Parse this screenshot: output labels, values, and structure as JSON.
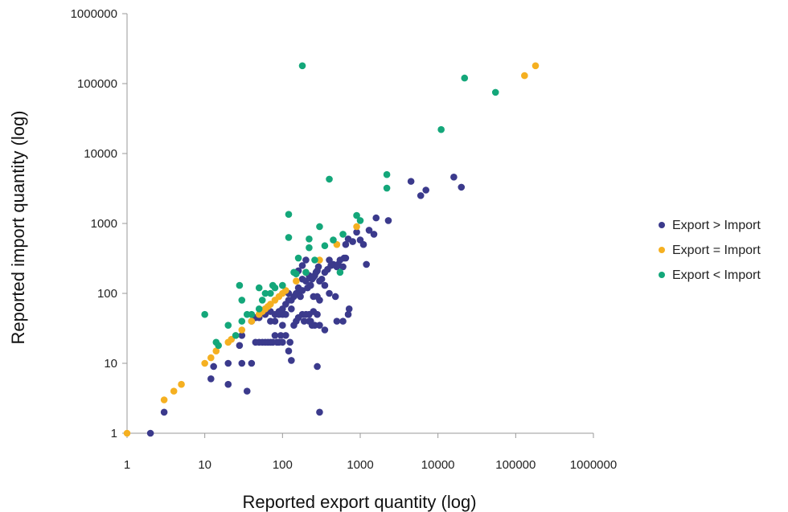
{
  "chart_data": {
    "type": "scatter",
    "title": "",
    "xlabel": "Reported export quantity (log)",
    "ylabel": "Reported import quantity (log)",
    "x_scale": "log",
    "y_scale": "log",
    "xlim": [
      1,
      1000000
    ],
    "ylim": [
      1,
      1000000
    ],
    "x_ticks": [
      "1",
      "10",
      "100",
      "1000",
      "10000",
      "100000",
      "1000000"
    ],
    "y_ticks": [
      "1",
      "10",
      "100",
      "1000",
      "10000",
      "100000",
      "1000000"
    ],
    "grid": false,
    "legend_position": "right",
    "series": [
      {
        "name": "Export > Import",
        "color": "#3b3a8c",
        "points": [
          [
            2,
            1
          ],
          [
            3,
            2
          ],
          [
            12,
            6
          ],
          [
            13,
            9
          ],
          [
            20,
            5
          ],
          [
            20,
            10
          ],
          [
            30,
            10
          ],
          [
            35,
            4
          ],
          [
            40,
            10
          ],
          [
            300,
            2
          ],
          [
            280,
            9
          ],
          [
            28,
            18
          ],
          [
            30,
            25
          ],
          [
            40,
            40
          ],
          [
            45,
            20
          ],
          [
            50,
            20
          ],
          [
            55,
            20
          ],
          [
            60,
            20
          ],
          [
            65,
            20
          ],
          [
            70,
            20
          ],
          [
            75,
            20
          ],
          [
            80,
            25
          ],
          [
            85,
            20
          ],
          [
            90,
            20
          ],
          [
            95,
            25
          ],
          [
            100,
            20
          ],
          [
            110,
            25
          ],
          [
            120,
            15
          ],
          [
            125,
            20
          ],
          [
            130,
            11
          ],
          [
            50,
            45
          ],
          [
            60,
            50
          ],
          [
            70,
            55
          ],
          [
            80,
            50
          ],
          [
            90,
            50
          ],
          [
            100,
            50
          ],
          [
            110,
            50
          ],
          [
            120,
            80
          ],
          [
            130,
            80
          ],
          [
            140,
            90
          ],
          [
            150,
            100
          ],
          [
            160,
            120
          ],
          [
            170,
            110
          ],
          [
            180,
            50
          ],
          [
            190,
            40
          ],
          [
            200,
            50
          ],
          [
            220,
            40
          ],
          [
            240,
            35
          ],
          [
            260,
            35
          ],
          [
            280,
            50
          ],
          [
            300,
            35
          ],
          [
            150,
            40
          ],
          [
            160,
            45
          ],
          [
            180,
            160
          ],
          [
            200,
            150
          ],
          [
            210,
            120
          ],
          [
            220,
            180
          ],
          [
            240,
            160
          ],
          [
            250,
            170
          ],
          [
            260,
            180
          ],
          [
            270,
            200
          ],
          [
            280,
            210
          ],
          [
            290,
            240
          ],
          [
            300,
            150
          ],
          [
            320,
            160
          ],
          [
            350,
            200
          ],
          [
            380,
            220
          ],
          [
            400,
            300
          ],
          [
            420,
            250
          ],
          [
            450,
            260
          ],
          [
            480,
            250
          ],
          [
            500,
            240
          ],
          [
            520,
            260
          ],
          [
            550,
            300
          ],
          [
            600,
            240
          ],
          [
            620,
            320
          ],
          [
            650,
            320
          ],
          [
            700,
            50
          ],
          [
            720,
            60
          ],
          [
            500,
            40
          ],
          [
            600,
            40
          ],
          [
            480,
            90
          ],
          [
            220,
            50
          ],
          [
            230,
            40
          ],
          [
            250,
            55
          ],
          [
            140,
            35
          ],
          [
            650,
            500
          ],
          [
            700,
            600
          ],
          [
            800,
            550
          ],
          [
            900,
            750
          ],
          [
            1000,
            580
          ],
          [
            1100,
            500
          ],
          [
            1200,
            260
          ],
          [
            1300,
            800
          ],
          [
            1500,
            700
          ],
          [
            1600,
            1200
          ],
          [
            2300,
            1100
          ],
          [
            230,
            130
          ],
          [
            300,
            80
          ],
          [
            400,
            100
          ],
          [
            280,
            90
          ],
          [
            180,
            110
          ],
          [
            170,
            90
          ],
          [
            100,
            60
          ],
          [
            120,
            100
          ],
          [
            90,
            55
          ],
          [
            60,
            60
          ],
          [
            70,
            40
          ],
          [
            80,
            40
          ],
          [
            45,
            45
          ],
          [
            4500,
            4000
          ],
          [
            6000,
            2500
          ],
          [
            7000,
            3000
          ],
          [
            16000,
            4600
          ],
          [
            20000,
            3300
          ],
          [
            350,
            130
          ],
          [
            250,
            90
          ],
          [
            160,
            210
          ],
          [
            110,
            70
          ],
          [
            100,
            35
          ],
          [
            350,
            30
          ],
          [
            130,
            60
          ],
          [
            200,
            300
          ],
          [
            180,
            250
          ]
        ]
      },
      {
        "name": "Export = Import",
        "color": "#f5b021",
        "points": [
          [
            1,
            1
          ],
          [
            3,
            3
          ],
          [
            4,
            4
          ],
          [
            5,
            5
          ],
          [
            10,
            10
          ],
          [
            12,
            12
          ],
          [
            14,
            15
          ],
          [
            20,
            20
          ],
          [
            22,
            22
          ],
          [
            25,
            25
          ],
          [
            30,
            30
          ],
          [
            40,
            40
          ],
          [
            50,
            50
          ],
          [
            55,
            55
          ],
          [
            60,
            60
          ],
          [
            65,
            65
          ],
          [
            70,
            70
          ],
          [
            80,
            80
          ],
          [
            90,
            90
          ],
          [
            100,
            100
          ],
          [
            110,
            110
          ],
          [
            150,
            150
          ],
          [
            200,
            200
          ],
          [
            300,
            300
          ],
          [
            500,
            500
          ],
          [
            900,
            900
          ],
          [
            130000,
            130000
          ],
          [
            180000,
            180000
          ]
        ]
      },
      {
        "name": "Export < Import",
        "color": "#14a77a",
        "points": [
          [
            10,
            50
          ],
          [
            14,
            20
          ],
          [
            15,
            18
          ],
          [
            20,
            35
          ],
          [
            25,
            25
          ],
          [
            28,
            130
          ],
          [
            30,
            80
          ],
          [
            30,
            40
          ],
          [
            35,
            50
          ],
          [
            40,
            50
          ],
          [
            50,
            60
          ],
          [
            50,
            120
          ],
          [
            55,
            80
          ],
          [
            60,
            100
          ],
          [
            70,
            100
          ],
          [
            75,
            130
          ],
          [
            80,
            120
          ],
          [
            100,
            130
          ],
          [
            120,
            630
          ],
          [
            120,
            1350
          ],
          [
            140,
            200
          ],
          [
            150,
            190
          ],
          [
            160,
            320
          ],
          [
            180,
            180000
          ],
          [
            200,
            200
          ],
          [
            220,
            600
          ],
          [
            220,
            450
          ],
          [
            260,
            300
          ],
          [
            300,
            900
          ],
          [
            350,
            480
          ],
          [
            400,
            4300
          ],
          [
            450,
            580
          ],
          [
            550,
            200
          ],
          [
            600,
            700
          ],
          [
            900,
            1300
          ],
          [
            1000,
            1100
          ],
          [
            2200,
            5000
          ],
          [
            2200,
            3200
          ],
          [
            11000,
            22000
          ],
          [
            22000,
            120000
          ],
          [
            55000,
            75000
          ]
        ]
      }
    ]
  }
}
